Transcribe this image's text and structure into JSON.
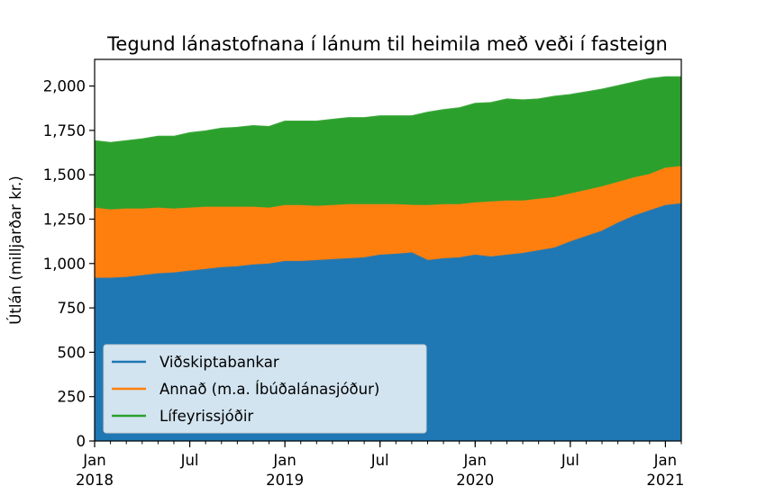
{
  "chart_data": {
    "type": "area",
    "stacked": true,
    "title": "Tegund lánastofnana í lánum til heimila með veði í fasteign",
    "xlabel": "",
    "ylabel": "Útlán (milljarðar kr.)",
    "ylim": [
      0,
      2150
    ],
    "yticks": [
      0,
      250,
      500,
      750,
      1000,
      1250,
      1500,
      1750,
      2000
    ],
    "ytick_labels": [
      "0",
      "250",
      "500",
      "750",
      "1,000",
      "1,250",
      "1,500",
      "1,750",
      "2,000"
    ],
    "xtick_labels": [
      {
        "month": 0,
        "line1": "Jan",
        "line2": "2018"
      },
      {
        "month": 6,
        "line1": "Jul",
        "line2": ""
      },
      {
        "month": 12,
        "line1": "Jan",
        "line2": "2019"
      },
      {
        "month": 18,
        "line1": "Jul",
        "line2": ""
      },
      {
        "month": 24,
        "line1": "Jan",
        "line2": "2020"
      },
      {
        "month": 30,
        "line1": "Jul",
        "line2": ""
      },
      {
        "month": 36,
        "line1": "Jan",
        "line2": "2021"
      }
    ],
    "x": [
      "2018-01",
      "2018-02",
      "2018-03",
      "2018-04",
      "2018-05",
      "2018-06",
      "2018-07",
      "2018-08",
      "2018-09",
      "2018-10",
      "2018-11",
      "2018-12",
      "2019-01",
      "2019-02",
      "2019-03",
      "2019-04",
      "2019-05",
      "2019-06",
      "2019-07",
      "2019-08",
      "2019-09",
      "2019-10",
      "2019-11",
      "2019-12",
      "2020-01",
      "2020-02",
      "2020-03",
      "2020-04",
      "2020-05",
      "2020-06",
      "2020-07",
      "2020-08",
      "2020-09",
      "2020-10",
      "2020-11",
      "2020-12",
      "2021-01",
      "2021-02"
    ],
    "legend_position": "lower-left",
    "grid": false,
    "series": [
      {
        "name": "Viðskiptabankar",
        "color": "#1f77b4",
        "values": [
          915,
          915,
          920,
          930,
          940,
          945,
          955,
          965,
          975,
          980,
          990,
          995,
          1010,
          1010,
          1015,
          1020,
          1025,
          1030,
          1045,
          1050,
          1058,
          1015,
          1025,
          1030,
          1045,
          1035,
          1045,
          1055,
          1070,
          1085,
          1120,
          1150,
          1180,
          1225,
          1265,
          1295,
          1325,
          1335
        ]
      },
      {
        "name": "Annað (m.a. Íbúðalánasjóður)",
        "color": "#ff7f0e",
        "values": [
          395,
          385,
          385,
          375,
          370,
          360,
          355,
          350,
          340,
          335,
          325,
          315,
          315,
          315,
          305,
          305,
          305,
          300,
          285,
          280,
          268,
          310,
          305,
          300,
          295,
          310,
          305,
          295,
          290,
          285,
          270,
          260,
          250,
          230,
          215,
          205,
          210,
          210
        ]
      },
      {
        "name": "Lífeyrissjóðir",
        "color": "#2ca02c",
        "values": [
          380,
          380,
          385,
          395,
          405,
          410,
          425,
          430,
          445,
          450,
          460,
          460,
          475,
          475,
          480,
          485,
          490,
          490,
          500,
          500,
          504,
          525,
          535,
          545,
          560,
          560,
          575,
          570,
          565,
          570,
          560,
          555,
          550,
          545,
          540,
          540,
          515,
          505
        ]
      }
    ]
  }
}
